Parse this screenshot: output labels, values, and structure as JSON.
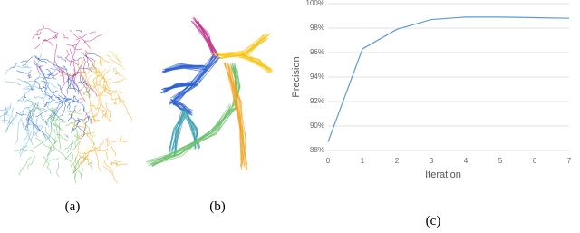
{
  "figure": {
    "panels": [
      {
        "label": "(a)"
      },
      {
        "label": "(b)"
      },
      {
        "label": "(c)"
      }
    ]
  },
  "chart_data": {
    "type": "line",
    "xlabel": "Iteration",
    "ylabel": "Precision",
    "x": [
      0,
      1,
      2,
      3,
      4,
      5,
      6,
      7
    ],
    "values": [
      88.7,
      96.3,
      97.9,
      98.7,
      98.9,
      98.9,
      98.85,
      98.8
    ],
    "color": "#5b9bd5",
    "xlim": [
      0,
      7
    ],
    "xticks": [
      0,
      1,
      2,
      3,
      4,
      5,
      6,
      7
    ],
    "ylim": [
      88,
      100
    ],
    "yticks": [
      {
        "value": 88,
        "label": "88%"
      },
      {
        "value": 90,
        "label": "90%"
      },
      {
        "value": 92,
        "label": "92%"
      },
      {
        "value": 94,
        "label": "94%"
      },
      {
        "value": 96,
        "label": "96%"
      },
      {
        "value": 98,
        "label": "98%"
      },
      {
        "value": 100,
        "label": "100%"
      }
    ],
    "grid": true
  }
}
